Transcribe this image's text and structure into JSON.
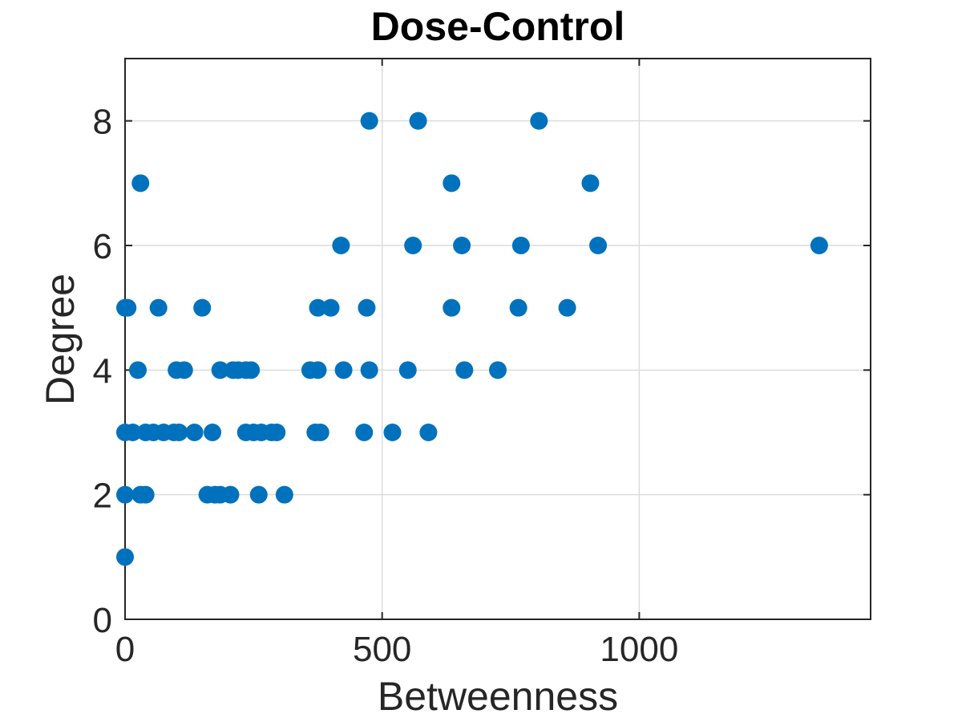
{
  "chart_data": {
    "type": "scatter",
    "title": "Dose-Control",
    "xlabel": "Betweenness",
    "ylabel": "Degree",
    "xlim": [
      0,
      1450
    ],
    "ylim": [
      0,
      9
    ],
    "xticks": [
      0,
      500,
      1000
    ],
    "xtick_labels": [
      "0",
      "500",
      "1000"
    ],
    "yticks": [
      0,
      2,
      4,
      6,
      8
    ],
    "ytick_labels": [
      "0",
      "2",
      "4",
      "6",
      "8"
    ],
    "grid": true,
    "marker_color": "#0072BD",
    "series": [
      {
        "points": [
          [
            0,
            1
          ],
          [
            0,
            2
          ],
          [
            30,
            2
          ],
          [
            40,
            2
          ],
          [
            160,
            2
          ],
          [
            175,
            2
          ],
          [
            185,
            2
          ],
          [
            205,
            2
          ],
          [
            260,
            2
          ],
          [
            310,
            2
          ],
          [
            0,
            3
          ],
          [
            15,
            3
          ],
          [
            40,
            3
          ],
          [
            55,
            3
          ],
          [
            75,
            3
          ],
          [
            95,
            3
          ],
          [
            105,
            3
          ],
          [
            135,
            3
          ],
          [
            170,
            3
          ],
          [
            235,
            3
          ],
          [
            250,
            3
          ],
          [
            265,
            3
          ],
          [
            285,
            3
          ],
          [
            295,
            3
          ],
          [
            370,
            3
          ],
          [
            380,
            3
          ],
          [
            465,
            3
          ],
          [
            520,
            3
          ],
          [
            590,
            3
          ],
          [
            25,
            4
          ],
          [
            100,
            4
          ],
          [
            115,
            4
          ],
          [
            185,
            4
          ],
          [
            210,
            4
          ],
          [
            220,
            4
          ],
          [
            235,
            4
          ],
          [
            245,
            4
          ],
          [
            360,
            4
          ],
          [
            375,
            4
          ],
          [
            425,
            4
          ],
          [
            475,
            4
          ],
          [
            550,
            4
          ],
          [
            660,
            4
          ],
          [
            725,
            4
          ],
          [
            0,
            5
          ],
          [
            5,
            5
          ],
          [
            65,
            5
          ],
          [
            150,
            5
          ],
          [
            375,
            5
          ],
          [
            400,
            5
          ],
          [
            470,
            5
          ],
          [
            635,
            5
          ],
          [
            765,
            5
          ],
          [
            860,
            5
          ],
          [
            420,
            6
          ],
          [
            560,
            6
          ],
          [
            655,
            6
          ],
          [
            770,
            6
          ],
          [
            920,
            6
          ],
          [
            1350,
            6
          ],
          [
            30,
            7
          ],
          [
            635,
            7
          ],
          [
            905,
            7
          ],
          [
            475,
            8
          ],
          [
            570,
            8
          ],
          [
            805,
            8
          ]
        ]
      }
    ]
  }
}
